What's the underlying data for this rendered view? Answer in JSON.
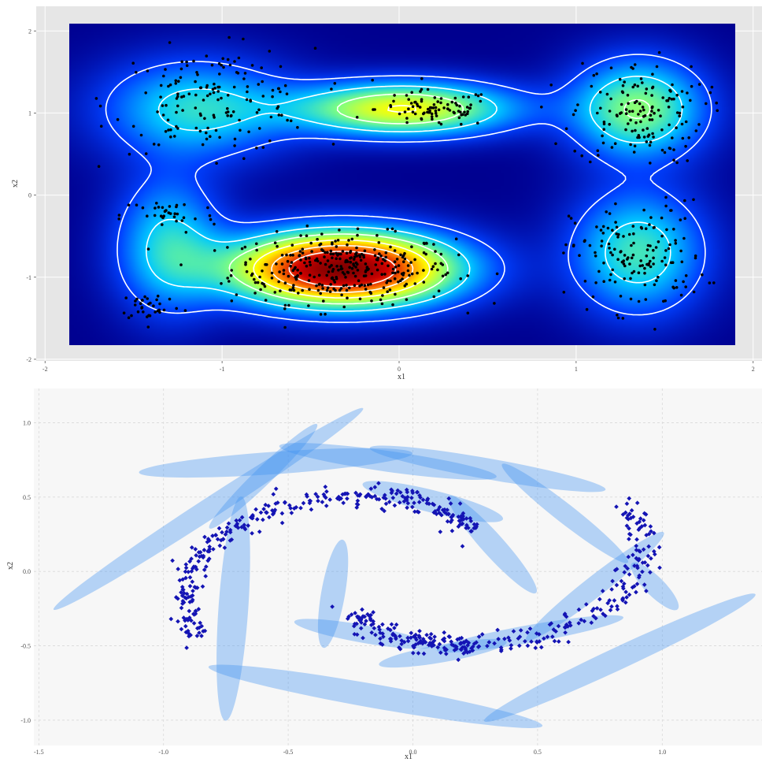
{
  "chart_data": [
    {
      "type": "heatmap",
      "title": "",
      "xlabel": "x1",
      "ylabel": "x2",
      "xlim": [
        -2.05,
        2.05
      ],
      "ylim": [
        -2.02,
        2.3
      ],
      "xticks": [
        "-2",
        "-1",
        "0",
        "1",
        "2"
      ],
      "yticks": [
        "2",
        "1",
        "0",
        "-1",
        "-2"
      ],
      "xtick_values": [
        -2,
        -1,
        0,
        1,
        2
      ],
      "ytick_values": [
        2,
        1,
        0,
        -1,
        -2
      ],
      "grid": true,
      "colormap": [
        "#00008f",
        "#0040ff",
        "#00c8ff",
        "#80ff80",
        "#ffff00",
        "#ff8000",
        "#d00000",
        "#800000"
      ],
      "density_components": [
        {
          "mean": [
            -0.32,
            -0.9
          ],
          "sd": [
            0.42,
            0.3
          ],
          "weight": 0.4
        },
        {
          "mean": [
            0.02,
            1.05
          ],
          "sd": [
            0.42,
            0.22
          ],
          "weight": 0.15
        },
        {
          "mean": [
            -1.15,
            1.05
          ],
          "sd": [
            0.35,
            0.4
          ],
          "weight": 0.12
        },
        {
          "mean": [
            1.35,
            1.05
          ],
          "sd": [
            0.25,
            0.4
          ],
          "weight": 0.12
        },
        {
          "mean": [
            1.35,
            -0.7
          ],
          "sd": [
            0.25,
            0.5
          ],
          "weight": 0.12
        },
        {
          "mean": [
            -1.3,
            -0.6
          ],
          "sd": [
            0.2,
            0.55
          ],
          "weight": 0.09
        }
      ],
      "contour_levels": 6,
      "point_clusters": [
        {
          "center": [
            -0.32,
            -0.9
          ],
          "spread": [
            0.42,
            0.28
          ],
          "count": 340
        },
        {
          "center": [
            0.2,
            1.05
          ],
          "spread": [
            0.22,
            0.15
          ],
          "count": 90
        },
        {
          "center": [
            -1.05,
            1.15
          ],
          "spread": [
            0.38,
            0.42
          ],
          "count": 160
        },
        {
          "center": [
            -1.3,
            -0.25
          ],
          "spread": [
            0.18,
            0.15
          ],
          "count": 35
        },
        {
          "center": [
            -1.4,
            -1.35
          ],
          "spread": [
            0.12,
            0.12
          ],
          "count": 35
        },
        {
          "center": [
            1.35,
            1.0
          ],
          "spread": [
            0.25,
            0.42
          ],
          "count": 150
        },
        {
          "center": [
            1.35,
            -0.75
          ],
          "spread": [
            0.25,
            0.45
          ],
          "count": 150
        }
      ],
      "point_color": "#000000",
      "contour_color": "#ffffff",
      "panel_background": "#e6e6e6"
    },
    {
      "type": "scatter",
      "title": "",
      "xlabel": "x1",
      "ylabel": "x2",
      "xlim": [
        -1.52,
        1.4
      ],
      "ylim": [
        -1.17,
        1.23
      ],
      "xticks": [
        "-1.5",
        "-1.0",
        "-0.5",
        "0.0",
        "0.5",
        "1.0"
      ],
      "yticks": [
        "1.0",
        "0.5",
        "0.0",
        "-0.5",
        "-1.0"
      ],
      "xtick_values": [
        -1.5,
        -1.0,
        -0.5,
        0.0,
        0.5,
        1.0
      ],
      "ytick_values": [
        1.0,
        0.5,
        0.0,
        -0.5,
        -1.0
      ],
      "grid": true,
      "spiral": {
        "arms": 2,
        "t_start": 0.35,
        "t_end": 3.1,
        "points_per_arm": 320,
        "noise": 0.035
      },
      "ellipses": [
        {
          "center": [
            -0.82,
            0.42
          ],
          "rx": 0.74,
          "ry": 0.07,
          "angle_deg": 33
        },
        {
          "center": [
            -0.55,
            0.73
          ],
          "rx": 0.55,
          "ry": 0.075,
          "angle_deg": 4
        },
        {
          "center": [
            -0.1,
            0.74
          ],
          "rx": 0.44,
          "ry": 0.07,
          "angle_deg": -8
        },
        {
          "center": [
            0.3,
            0.69
          ],
          "rx": 0.48,
          "ry": 0.07,
          "angle_deg": -10
        },
        {
          "center": [
            -0.6,
            0.64
          ],
          "rx": 0.3,
          "ry": 0.06,
          "angle_deg": 44
        },
        {
          "center": [
            -0.72,
            -0.25
          ],
          "rx": 0.45,
          "ry": 0.1,
          "angle_deg": 86
        },
        {
          "center": [
            -0.32,
            -0.15
          ],
          "rx": 0.22,
          "ry": 0.08,
          "angle_deg": 80
        },
        {
          "center": [
            0.08,
            0.47
          ],
          "rx": 0.29,
          "ry": 0.075,
          "angle_deg": -14
        },
        {
          "center": [
            0.32,
            0.18
          ],
          "rx": 0.26,
          "ry": 0.075,
          "angle_deg": -48
        },
        {
          "center": [
            0.61,
            0.39
          ],
          "rx": 0.32,
          "ry": 0.065,
          "angle_deg": -38
        },
        {
          "center": [
            0.73,
            -0.1
          ],
          "rx": 0.35,
          "ry": 0.07,
          "angle_deg": 38
        },
        {
          "center": [
            -0.2,
            -0.42
          ],
          "rx": 0.28,
          "ry": 0.06,
          "angle_deg": -10
        },
        {
          "center": [
            0.12,
            -0.55
          ],
          "rx": 0.26,
          "ry": 0.06,
          "angle_deg": 10
        },
        {
          "center": [
            0.47,
            -0.42
          ],
          "rx": 0.38,
          "ry": 0.06,
          "angle_deg": 10
        },
        {
          "center": [
            -0.15,
            -0.84
          ],
          "rx": 0.68,
          "ry": 0.08,
          "angle_deg": -10
        },
        {
          "center": [
            0.83,
            -0.58
          ],
          "rx": 0.6,
          "ry": 0.075,
          "angle_deg": 25
        },
        {
          "center": [
            0.97,
            -0.1
          ],
          "rx": 0.13,
          "ry": 0.065,
          "angle_deg": -45
        }
      ],
      "point_color": "#1414b4",
      "ellipse_color": "#3d8ff0",
      "ellipse_opacity": 0.36,
      "panel_background": "#f7f7f7"
    }
  ]
}
